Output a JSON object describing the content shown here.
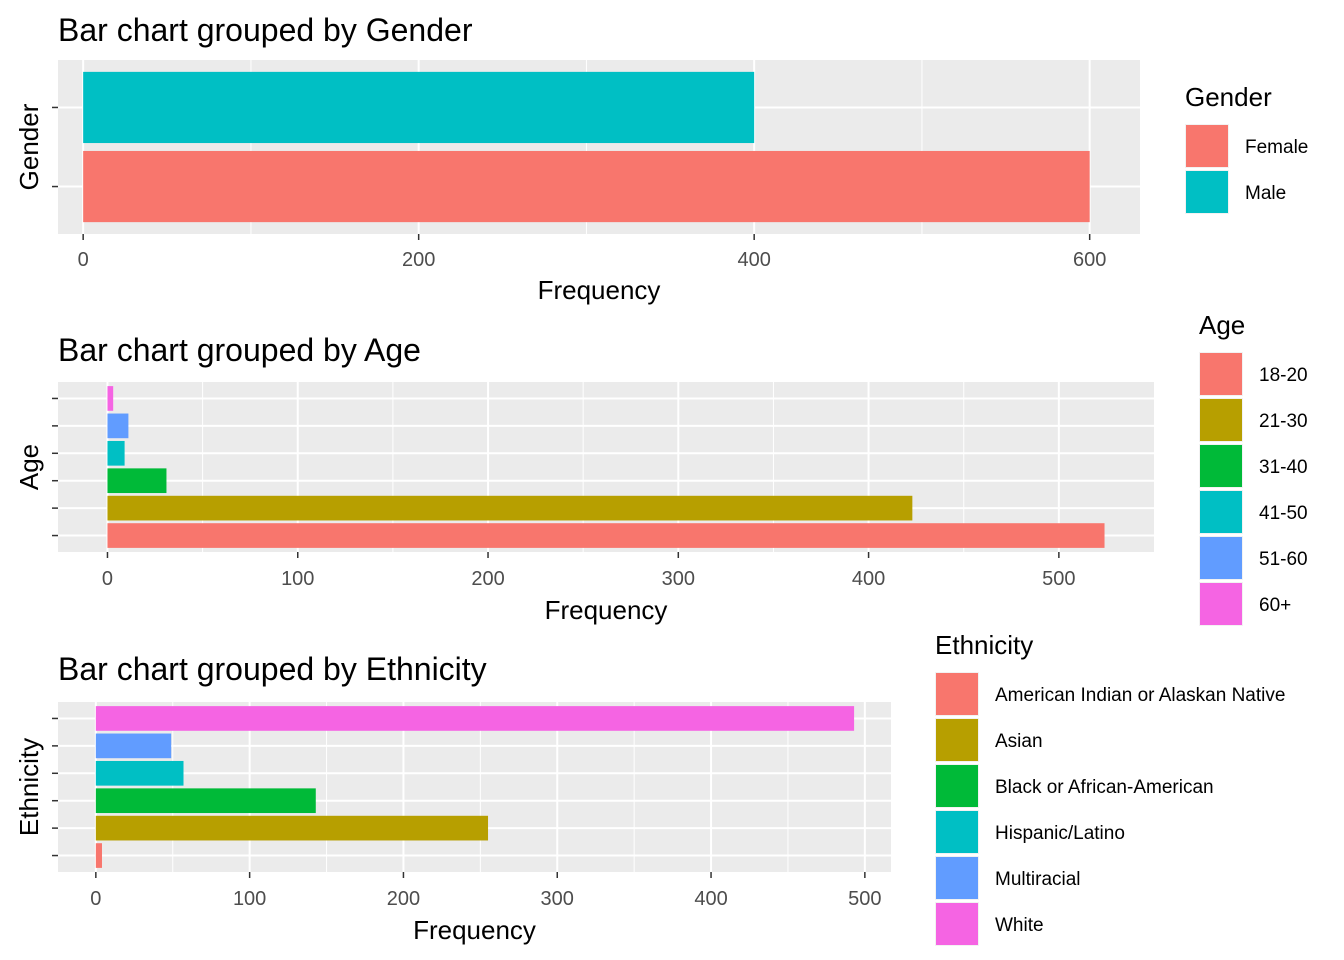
{
  "chart_data": [
    {
      "type": "bar",
      "orientation": "horizontal",
      "title": "Bar chart grouped by Gender",
      "xlabel": "Frequency",
      "ylabel": "Gender",
      "xlim": [
        -15,
        630
      ],
      "xticks": [
        0,
        200,
        400,
        600
      ],
      "categories": [
        "Female",
        "Male"
      ],
      "values": [
        600,
        400
      ],
      "colors": [
        "#F8766D",
        "#00BFC4"
      ],
      "legend": {
        "title": "Gender",
        "entries": [
          "Female",
          "Male"
        ],
        "position": "right"
      },
      "grid": true
    },
    {
      "type": "bar",
      "orientation": "horizontal",
      "title": "Bar chart grouped by Age",
      "xlabel": "Frequency",
      "ylabel": "Age",
      "xlim": [
        -26,
        550
      ],
      "xticks": [
        0,
        100,
        200,
        300,
        400,
        500
      ],
      "categories": [
        "18-20",
        "21-30",
        "31-40",
        "41-50",
        "51-60",
        "60+"
      ],
      "values": [
        524,
        423,
        31,
        9,
        11,
        3
      ],
      "colors": [
        "#F8766D",
        "#B79F00",
        "#00BA38",
        "#00BFC4",
        "#619CFF",
        "#F564E3"
      ],
      "legend": {
        "title": "Age",
        "entries": [
          "18-20",
          "21-30",
          "31-40",
          "41-50",
          "51-60",
          "60+"
        ],
        "position": "right"
      },
      "grid": true
    },
    {
      "type": "bar",
      "orientation": "horizontal",
      "title": "Bar chart grouped by Ethnicity",
      "xlabel": "Frequency",
      "ylabel": "Ethnicity",
      "xlim": [
        -24.6,
        517
      ],
      "xticks": [
        0,
        100,
        200,
        300,
        400,
        500
      ],
      "categories": [
        "American Indian or Alaskan Native",
        "Asian",
        "Black or African-American",
        "Hispanic/Latino",
        "Multiracial",
        "White"
      ],
      "values": [
        4,
        255,
        143,
        57,
        49,
        493
      ],
      "colors": [
        "#F8766D",
        "#B79F00",
        "#00BA38",
        "#00BFC4",
        "#619CFF",
        "#F564E3"
      ],
      "legend": {
        "title": "Ethnicity",
        "entries": [
          "American Indian or Alaskan Native",
          "Asian",
          "Black or African-American",
          "Hispanic/Latino",
          "Multiracial",
          "White"
        ],
        "position": "right"
      },
      "grid": true
    }
  ]
}
